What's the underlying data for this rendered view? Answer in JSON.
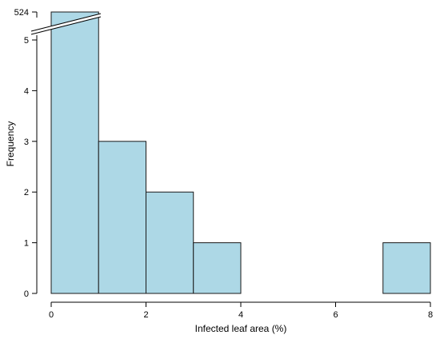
{
  "chart_data": {
    "type": "bar",
    "subtype": "histogram",
    "title": "",
    "xlabel": "Infected leaf area (%)",
    "ylabel": "Frequency",
    "bins": [
      {
        "x0": 0,
        "x1": 1,
        "count": 524
      },
      {
        "x0": 1,
        "x1": 2,
        "count": 3
      },
      {
        "x0": 2,
        "x1": 3,
        "count": 2
      },
      {
        "x0": 3,
        "x1": 4,
        "count": 1
      },
      {
        "x0": 4,
        "x1": 5,
        "count": 0
      },
      {
        "x0": 5,
        "x1": 6,
        "count": 0
      },
      {
        "x0": 6,
        "x1": 7,
        "count": 0
      },
      {
        "x0": 7,
        "x1": 8,
        "count": 1
      }
    ],
    "xlim": [
      0,
      8
    ],
    "ylim": [
      0,
      5
    ],
    "axis_break": {
      "after": 5,
      "top_label": "524"
    },
    "x_ticks": [
      "0",
      "2",
      "4",
      "6",
      "8"
    ],
    "y_ticks": [
      "0",
      "1",
      "2",
      "3",
      "4",
      "5"
    ],
    "bar_color": "#add8e6",
    "grid": false,
    "legend": "none"
  }
}
